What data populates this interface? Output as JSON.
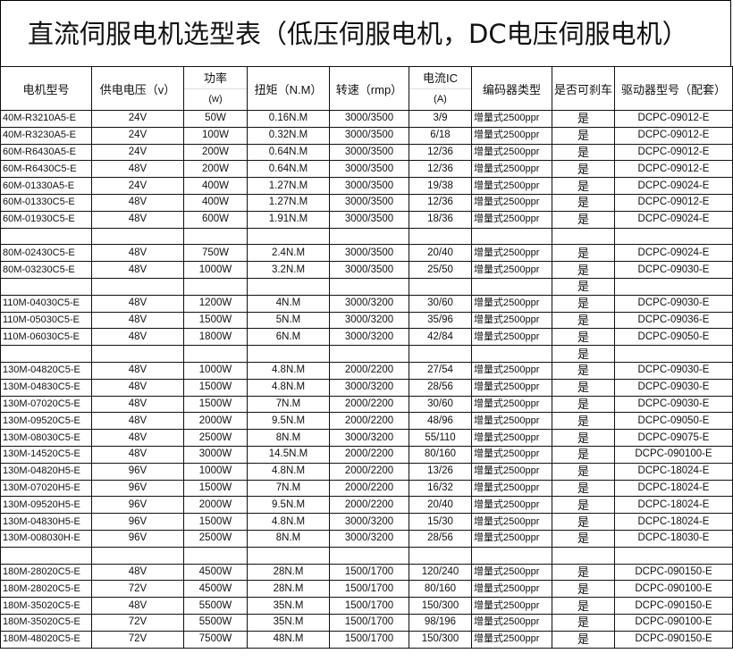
{
  "title": "直流伺服电机选型表（低压伺服电机，DC电压伺服电机）",
  "headers": {
    "model": "电机型号",
    "voltage": "供电电压（v）",
    "power": "功率",
    "power_unit": "(w)",
    "torque": "扭矩（N.M）",
    "speed": "转速（rmp）",
    "current": "电流IC",
    "current_unit": "(A)",
    "encoder": "编码器类型",
    "brake": "是否可刹车",
    "driver": "驱动器型号（配套）"
  },
  "rows": [
    [
      "40M-R3210A5-E",
      "24V",
      "50W",
      "0.16N.M",
      "3000/3500",
      "3/9",
      "增量式2500ppr",
      "是",
      "DCPC-09012-E"
    ],
    [
      "40M-R3230A5-E",
      "24V",
      "100W",
      "0.32N.M",
      "3000/3500",
      "6/18",
      "增量式2500ppr",
      "是",
      "DCPC-09012-E"
    ],
    [
      "60M-R6430A5-E",
      "24V",
      "200W",
      "0.64N.M",
      "3000/3500",
      "12/36",
      "增量式2500ppr",
      "是",
      "DCPC-09012-E"
    ],
    [
      "60M-R6430C5-E",
      "48V",
      "200W",
      "0.64N.M",
      "3000/3500",
      "12/36",
      "增量式2500ppr",
      "是",
      "DCPC-09012-E"
    ],
    [
      "60M-01330A5-E",
      "24V",
      "400W",
      "1.27N.M",
      "3000/3500",
      "19/38",
      "增量式2500ppr",
      "是",
      "DCPC-09024-E"
    ],
    [
      "60M-01330C5-E",
      "48V",
      "400W",
      "1.27N.M",
      "3000/3500",
      "12/36",
      "增量式2500ppr",
      "是",
      "DCPC-09012-E"
    ],
    [
      "60M-01930C5-E",
      "48V",
      "600W",
      "1.91N.M",
      "3000/3500",
      "18/36",
      "增量式2500ppr",
      "是",
      "DCPC-09024-E"
    ],
    [
      "",
      "",
      "",
      "",
      "",
      "",
      "",
      "",
      ""
    ],
    [
      "80M-02430C5-E",
      "48V",
      "750W",
      "2.4N.M",
      "3000/3500",
      "20/40",
      "增量式2500ppr",
      "是",
      "DCPC-09024-E"
    ],
    [
      "80M-03230C5-E",
      "48V",
      "1000W",
      "3.2N.M",
      "3000/3500",
      "25/50",
      "增量式2500ppr",
      "是",
      "DCPC-09030-E"
    ],
    [
      "",
      "",
      "",
      "",
      "",
      "",
      "",
      "是",
      ""
    ],
    [
      "110M-04030C5-E",
      "48V",
      "1200W",
      "4N.M",
      "3000/3200",
      "30/60",
      "增量式2500ppr",
      "是",
      "DCPC-09030-E"
    ],
    [
      "110M-05030C5-E",
      "48V",
      "1500W",
      "5N.M",
      "3000/3200",
      "35/96",
      "增量式2500ppr",
      "是",
      "DCPC-09036-E"
    ],
    [
      "110M-06030C5-E",
      "48V",
      "1800W",
      "6N.M",
      "3000/3200",
      "42/84",
      "增量式2500ppr",
      "是",
      "DCPC-09050-E"
    ],
    [
      "",
      "",
      "",
      "",
      "",
      "",
      "",
      "是",
      ""
    ],
    [
      "130M-04820C5-E",
      "48V",
      "1000W",
      "4.8N.M",
      "2000/2200",
      "27/54",
      "增量式2500ppr",
      "是",
      "DCPC-09030-E"
    ],
    [
      "130M-04830C5-E",
      "48V",
      "1500W",
      "4.8N.M",
      "3000/3200",
      "28/56",
      "增量式2500ppr",
      "是",
      "DCPC-09030-E"
    ],
    [
      "130M-07020C5-E",
      "48V",
      "1500W",
      "7N.M",
      "2000/2200",
      "30/60",
      "增量式2500ppr",
      "是",
      "DCPC-09030-E"
    ],
    [
      "130M-09520C5-E",
      "48V",
      "2000W",
      "9.5N.M",
      "2000/2200",
      "48/96",
      "增量式2500ppr",
      "是",
      "DCPC-09050-E"
    ],
    [
      "130M-08030C5-E",
      "48V",
      "2500W",
      "8N.M",
      "3000/3200",
      "55/110",
      "增量式2500ppr",
      "是",
      "DCPC-09075-E"
    ],
    [
      "130M-14520C5-E",
      "48V",
      "3000W",
      "14.5N.M",
      "2000/2200",
      "80/160",
      "增量式2500ppr",
      "是",
      "DCPC-090100-E"
    ],
    [
      "130M-04820H5-E",
      "96V",
      "1000W",
      "4.8N.M",
      "2000/2200",
      "13/26",
      "增量式2500ppr",
      "是",
      "DCPC-18024-E"
    ],
    [
      "130M-07020H5-E",
      "96V",
      "1500W",
      "7N.M",
      "2000/2200",
      "16/32",
      "增量式2500ppr",
      "是",
      "DCPC-18024-E"
    ],
    [
      "130M-09520H5-E",
      "96V",
      "2000W",
      "9.5N.M",
      "2000/2200",
      "20/40",
      "增量式2500ppr",
      "是",
      "DCPC-18024-E"
    ],
    [
      "130M-04830H5-E",
      "96V",
      "1500W",
      "4.8N.M",
      "3000/3200",
      "15/30",
      "增量式2500ppr",
      "是",
      "DCPC-18024-E"
    ],
    [
      "130M-008030H-E",
      "96V",
      "2500W",
      "8N.M",
      "3000/3200",
      "28/56",
      "增量式2500ppr",
      "是",
      "DCPC-18030-E"
    ],
    [
      "",
      "",
      "",
      "",
      "",
      "",
      "",
      "",
      ""
    ],
    [
      "180M-28020C5-E",
      "48V",
      "4500W",
      "28N.M",
      "1500/1700",
      "120/240",
      "增量式2500ppr",
      "是",
      "DCPC-090150-E"
    ],
    [
      "180M-28020C5-E",
      "72V",
      "4500W",
      "28N.M",
      "1500/1700",
      "80/160",
      "增量式2500ppr",
      "是",
      "DCPC-090100-E"
    ],
    [
      "180M-35020C5-E",
      "48V",
      "5500W",
      "35N.M",
      "1500/1700",
      "150/300",
      "增量式2500ppr",
      "是",
      "DCPC-090150-E"
    ],
    [
      "180M-35020C5-E",
      "72V",
      "5500W",
      "35N.M",
      "1500/1700",
      "98/196",
      "增量式2500ppr",
      "是",
      "DCPC-090100-E"
    ],
    [
      "180M-48020C5-E",
      "72V",
      "7500W",
      "48N.M",
      "1500/1700",
      "150/300",
      "增量式2500ppr",
      "是",
      "DCPC-090150-E"
    ]
  ]
}
